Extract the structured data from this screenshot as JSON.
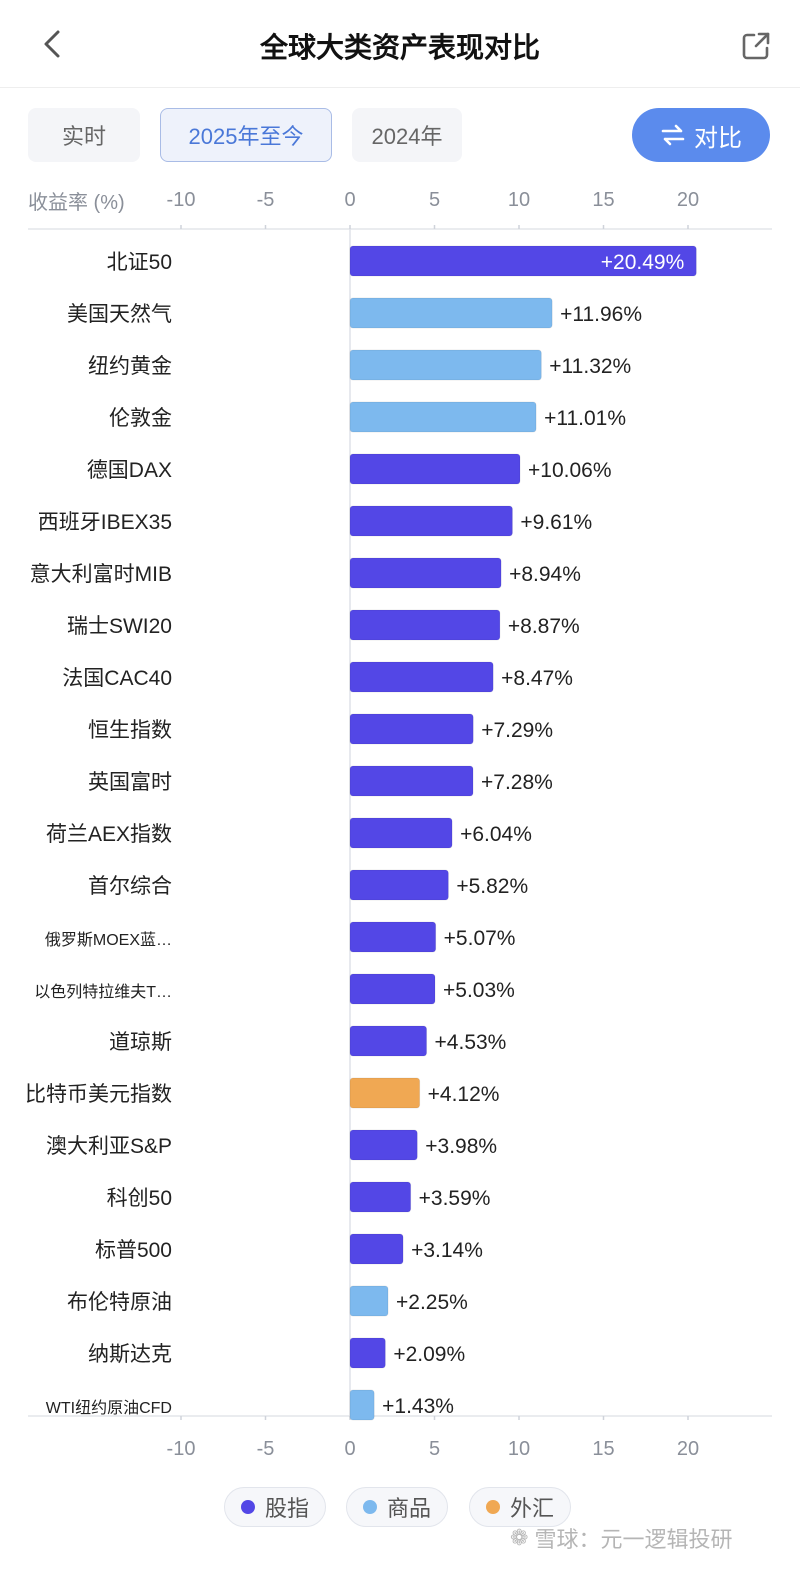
{
  "header": {
    "title": "全球大类资产表现对比"
  },
  "tabs": [
    {
      "label": "实时",
      "active": false
    },
    {
      "label": "2025年至今",
      "active": true
    },
    {
      "label": "2024年",
      "active": false
    }
  ],
  "compare_button": {
    "label": "对比"
  },
  "colors": {
    "股指": "#5347e6",
    "商品": "#7db9ee",
    "外汇": "#f0a853"
  },
  "chart_data": {
    "type": "bar",
    "orientation": "horizontal",
    "axis_title": "收益率 (%)",
    "xlim": [
      -10,
      25
    ],
    "xticks": [
      -10,
      -5,
      0,
      5,
      10,
      15,
      20
    ],
    "categories": [
      "北证50",
      "美国天然气",
      "纽约黄金",
      "伦敦金",
      "德国DAX",
      "西班牙IBEX35",
      "意大利富时MIB",
      "瑞士SWI20",
      "法国CAC40",
      "恒生指数",
      "英国富时",
      "荷兰AEX指数",
      "首尔综合",
      "俄罗斯MOEX蓝…",
      "以色列特拉维夫T…",
      "道琼斯",
      "比特币美元指数",
      "澳大利亚S&P",
      "科创50",
      "标普500",
      "布伦特原油",
      "纳斯达克",
      "WTI纽约原油CFD"
    ],
    "values": [
      20.49,
      11.96,
      11.32,
      11.01,
      10.06,
      9.61,
      8.94,
      8.87,
      8.47,
      7.29,
      7.28,
      6.04,
      5.82,
      5.07,
      5.03,
      4.53,
      4.12,
      3.98,
      3.59,
      3.14,
      2.25,
      2.09,
      1.43
    ],
    "value_labels": [
      "+20.49%",
      "+11.96%",
      "+11.32%",
      "+11.01%",
      "+10.06%",
      "+9.61%",
      "+8.94%",
      "+8.87%",
      "+8.47%",
      "+7.29%",
      "+7.28%",
      "+6.04%",
      "+5.82%",
      "+5.07%",
      "+5.03%",
      "+4.53%",
      "+4.12%",
      "+3.98%",
      "+3.59%",
      "+3.14%",
      "+2.25%",
      "+2.09%",
      "+1.43%"
    ],
    "groups": [
      "股指",
      "商品",
      "商品",
      "商品",
      "股指",
      "股指",
      "股指",
      "股指",
      "股指",
      "股指",
      "股指",
      "股指",
      "股指",
      "股指",
      "股指",
      "股指",
      "外汇",
      "股指",
      "股指",
      "股指",
      "商品",
      "股指",
      "商品"
    ],
    "legend": [
      "股指",
      "商品",
      "外汇"
    ],
    "grid": false,
    "legend_placement": "bottom"
  },
  "watermark": {
    "text": "雪球：元一逻辑投研"
  }
}
